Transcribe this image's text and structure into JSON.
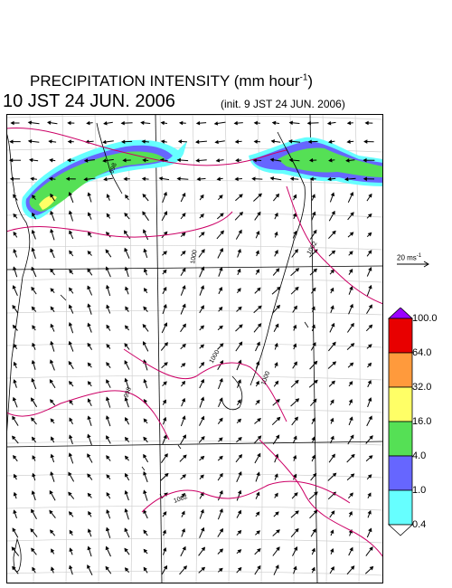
{
  "title": {
    "main": "PRECIPITATION INTENSITY (mm hour",
    "unit_exp": "-1",
    "close": ")"
  },
  "datetime": "10 JST 24 JUN. 2006",
  "init": "(init. 9 JST 24 JUN. 2006)",
  "wind_scale": {
    "label": "20 ms",
    "exp": "-1"
  },
  "colorbar": {
    "levels": [
      "100.0",
      "64.0",
      "32.0",
      "16.0",
      "4.0",
      "1.0",
      "0.4"
    ],
    "colors": [
      "#9b00ff",
      "#e80000",
      "#ff9a3c",
      "#ffff66",
      "#55e055",
      "#6666ff",
      "#66ffff",
      "#ffffff"
    ]
  },
  "isobar_labels": [
    "998",
    "1000",
    "1002",
    "1000",
    "1000",
    "998",
    "1002"
  ],
  "colors": {
    "isobar": "#cc0066",
    "grid": "#cfcfcf",
    "coast": "#000000",
    "rain_light": "#66ffff",
    "rain_mid": "#6666ff",
    "rain_heavy": "#55e055",
    "rain_peak": "#ffff66"
  }
}
